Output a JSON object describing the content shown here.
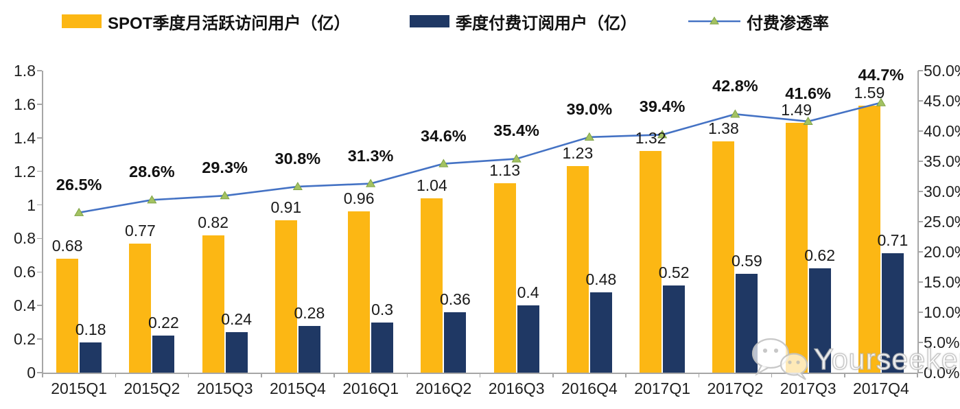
{
  "chart_data": {
    "type": "combo",
    "title": "",
    "legend_position": "top",
    "grid": false,
    "categories": [
      "2015Q1",
      "2015Q2",
      "2015Q3",
      "2015Q4",
      "2016Q1",
      "2016Q2",
      "2016Q3",
      "2016Q4",
      "2017Q1",
      "2017Q2",
      "2017Q3",
      "2017Q4"
    ],
    "series": [
      {
        "name": "SPOT季度月活跃访问用户（亿）",
        "type": "bar",
        "color": "#FCB714",
        "axis": "left",
        "values": [
          0.68,
          0.77,
          0.82,
          0.91,
          0.96,
          1.04,
          1.13,
          1.23,
          1.32,
          1.38,
          1.49,
          1.59
        ],
        "value_labels": [
          "0.68",
          "0.77",
          "0.82",
          "0.91",
          "0.96",
          "1.04",
          "1.13",
          "1.23",
          "1.32",
          "1.38",
          "1.49",
          "1.59"
        ]
      },
      {
        "name": "季度付费订阅用户（亿）",
        "type": "bar",
        "color": "#1F3864",
        "axis": "left",
        "values": [
          0.18,
          0.22,
          0.24,
          0.28,
          0.3,
          0.36,
          0.4,
          0.48,
          0.52,
          0.59,
          0.62,
          0.71
        ],
        "value_labels": [
          "0.18",
          "0.22",
          "0.24",
          "0.28",
          "0.3",
          "0.36",
          "0.4",
          "0.48",
          "0.52",
          "0.59",
          "0.62",
          "0.71"
        ]
      },
      {
        "name": "付费渗透率",
        "type": "line",
        "color": "#4472C4",
        "marker": "triangle",
        "marker_color": "#A3C262",
        "marker_stroke": "#7FA345",
        "axis": "right",
        "values_percent": [
          26.5,
          28.6,
          29.3,
          30.8,
          31.3,
          34.6,
          35.4,
          39.0,
          39.4,
          42.8,
          41.6,
          44.7
        ],
        "value_labels": [
          "26.5%",
          "28.6%",
          "29.3%",
          "30.8%",
          "31.3%",
          "34.6%",
          "35.4%",
          "39.0%",
          "39.4%",
          "42.8%",
          "41.6%",
          "44.7%"
        ]
      }
    ],
    "left_axis": {
      "min": 0,
      "max": 1.8,
      "step": 0.2,
      "tick_labels": [
        "1.8",
        "1.6",
        "1.4",
        "1.2",
        "1",
        "0.8",
        "0.6",
        "0.4",
        "0.2",
        "0"
      ]
    },
    "right_axis": {
      "min": 0,
      "max": 50,
      "step": 5,
      "unit": "%",
      "tick_labels": [
        "50.0%",
        "45.0%",
        "40.0%",
        "35.0%",
        "30.0%",
        "25.0%",
        "20.0%",
        "15.0%",
        "10.0%",
        "5.0%",
        "0.0%"
      ]
    },
    "axis_color": "#A6A6A6"
  },
  "watermark": {
    "text": "Yourseeker",
    "icon": "wechat-icon"
  }
}
